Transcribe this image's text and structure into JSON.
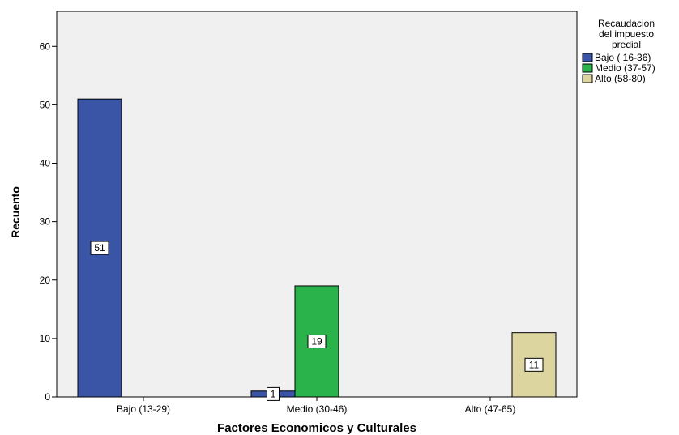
{
  "chart_data": {
    "type": "bar",
    "xlabel": "Factores Economicos y Culturales",
    "ylabel": "Recuento",
    "categories": [
      "Bajo (13-29)",
      "Medio (30-46)",
      "Alto (47-65)"
    ],
    "ylim": [
      0,
      66
    ],
    "yticks": [
      0,
      10,
      20,
      30,
      40,
      50,
      60
    ],
    "grid": false,
    "legend": {
      "title": "Recaudacion del impuesto predial",
      "placement": "right"
    },
    "series": [
      {
        "name": "Bajo ( 16-36)",
        "color": "#3a55a6",
        "values": [
          51,
          1,
          0
        ]
      },
      {
        "name": "Medio (37-57)",
        "color": "#2ab34a",
        "values": [
          0,
          19,
          0
        ]
      },
      {
        "name": "Alto (58-80)",
        "color": "#dcd5a0",
        "values": [
          0,
          0,
          11
        ]
      }
    ],
    "data_labels": [
      {
        "category": "Bajo (13-29)",
        "series": "Bajo ( 16-36)",
        "value": 51
      },
      {
        "category": "Medio (30-46)",
        "series": "Bajo ( 16-36)",
        "value": 1
      },
      {
        "category": "Medio (30-46)",
        "series": "Medio (37-57)",
        "value": 19
      },
      {
        "category": "Alto (47-65)",
        "series": "Alto (58-80)",
        "value": 11
      }
    ],
    "plot_background": "#f0f0f0"
  }
}
